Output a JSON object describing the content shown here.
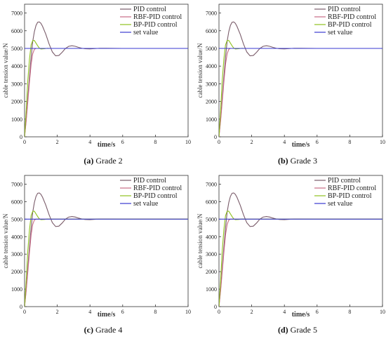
{
  "chart_data": [
    {
      "type": "line",
      "caption_letter": "(a)",
      "caption_text": " Grade 2",
      "xlabel": "time/s",
      "ylabel": "cable tension value/N",
      "xlim": [
        0,
        10
      ],
      "ylim": [
        0,
        7500
      ],
      "x_ticks": [
        0,
        2,
        4,
        6,
        8,
        10
      ],
      "y_ticks": [
        0,
        1000,
        2000,
        3000,
        4000,
        5000,
        6000,
        7000
      ],
      "legend_position": "top-right",
      "grid": false,
      "series": [
        {
          "name": "PID control",
          "color": "#7a5c6a",
          "x": [
            0,
            0.1,
            0.2,
            0.3,
            0.4,
            0.5,
            0.6,
            0.7,
            0.8,
            0.9,
            1.0,
            1.1,
            1.3,
            1.5,
            1.7,
            1.9,
            2.1,
            2.3,
            2.5,
            2.7,
            2.9,
            3.1,
            3.3,
            3.5,
            3.7,
            4.0,
            4.3,
            4.6,
            5.0,
            6.0,
            7.0,
            8.0,
            9.0,
            10.0
          ],
          "y": [
            0,
            1000,
            2200,
            3400,
            4500,
            5400,
            5950,
            6300,
            6480,
            6500,
            6420,
            6250,
            5800,
            5250,
            4800,
            4580,
            4600,
            4780,
            5000,
            5120,
            5150,
            5120,
            5060,
            5010,
            4980,
            4970,
            4990,
            5010,
            5010,
            5000,
            5000,
            5000,
            5000,
            5000
          ]
        },
        {
          "name": "RBF-PID control",
          "color": "#c86a85",
          "x": [
            0,
            0.1,
            0.2,
            0.3,
            0.4,
            0.5,
            0.6,
            0.7,
            0.8,
            1.0,
            1.5,
            2,
            3,
            4,
            5,
            6,
            7,
            8,
            9,
            10
          ],
          "y": [
            0,
            900,
            2000,
            3100,
            4100,
            4700,
            4950,
            5000,
            5000,
            5000,
            5000,
            5000,
            5000,
            5000,
            5000,
            5000,
            5000,
            5000,
            5000,
            5000
          ]
        },
        {
          "name": "BP-PID control",
          "color": "#8fc21e",
          "x": [
            0,
            0.1,
            0.2,
            0.3,
            0.4,
            0.5,
            0.6,
            0.7,
            0.8,
            0.9,
            1.0,
            1.2,
            1.4,
            1.6,
            2,
            3,
            4,
            5,
            6,
            7,
            8,
            9,
            10
          ],
          "y": [
            0,
            1500,
            3200,
            4400,
            5200,
            5450,
            5450,
            5300,
            5150,
            5020,
            4970,
            4980,
            5010,
            5000,
            5000,
            5000,
            5000,
            5000,
            5000,
            5000,
            5000,
            5000,
            5000
          ]
        },
        {
          "name": "set value",
          "color": "#3a3ad0",
          "x": [
            0,
            10
          ],
          "y": [
            5000,
            5000
          ]
        }
      ]
    },
    {
      "type": "line",
      "caption_letter": "(b)",
      "caption_text": " Grade 3",
      "xlabel": "time/s",
      "ylabel": "cable tension value/N",
      "xlim": [
        0,
        10
      ],
      "ylim": [
        0,
        7500
      ],
      "x_ticks": [
        0,
        2,
        4,
        6,
        8,
        10
      ],
      "y_ticks": [
        0,
        1000,
        2000,
        3000,
        4000,
        5000,
        6000,
        7000
      ],
      "legend_position": "top-right",
      "grid": false,
      "series": [
        {
          "name": "PID control",
          "color": "#7a5c6a",
          "x": [
            0,
            0.1,
            0.2,
            0.3,
            0.4,
            0.5,
            0.6,
            0.7,
            0.8,
            0.9,
            1.0,
            1.1,
            1.3,
            1.5,
            1.7,
            1.9,
            2.1,
            2.3,
            2.5,
            2.7,
            2.9,
            3.1,
            3.3,
            3.5,
            3.7,
            4.0,
            4.3,
            4.6,
            5.0,
            6.0,
            7.0,
            8.0,
            9.0,
            10.0
          ],
          "y": [
            0,
            1000,
            2200,
            3400,
            4500,
            5400,
            5950,
            6300,
            6480,
            6500,
            6420,
            6250,
            5800,
            5250,
            4800,
            4580,
            4600,
            4780,
            5000,
            5120,
            5150,
            5120,
            5060,
            5010,
            4980,
            4970,
            4990,
            5010,
            5010,
            5000,
            5000,
            5000,
            5000,
            5000
          ]
        },
        {
          "name": "RBF-PID control",
          "color": "#c86a85",
          "x": [
            0,
            0.1,
            0.2,
            0.3,
            0.4,
            0.5,
            0.6,
            0.7,
            0.8,
            1.0,
            1.5,
            2,
            3,
            4,
            5,
            6,
            7,
            8,
            9,
            10
          ],
          "y": [
            0,
            900,
            2000,
            3100,
            4100,
            4700,
            4950,
            5000,
            5000,
            5000,
            5000,
            5000,
            5000,
            5000,
            5000,
            5000,
            5000,
            5000,
            5000,
            5000
          ]
        },
        {
          "name": "BP-PID control",
          "color": "#8fc21e",
          "x": [
            0,
            0.1,
            0.2,
            0.3,
            0.4,
            0.5,
            0.6,
            0.7,
            0.8,
            0.9,
            1.0,
            1.2,
            1.4,
            1.6,
            2,
            3,
            4,
            5,
            6,
            7,
            8,
            9,
            10
          ],
          "y": [
            0,
            1500,
            3200,
            4400,
            5200,
            5450,
            5450,
            5300,
            5150,
            5020,
            4970,
            4980,
            5010,
            5000,
            5000,
            5000,
            5000,
            5000,
            5000,
            5000,
            5000,
            5000,
            5000
          ]
        },
        {
          "name": "set value",
          "color": "#3a3ad0",
          "x": [
            0,
            10
          ],
          "y": [
            5000,
            5000
          ]
        }
      ]
    },
    {
      "type": "line",
      "caption_letter": "(c)",
      "caption_text": " Grade 4",
      "xlabel": "time/s",
      "ylabel": "cable tension value/N",
      "xlim": [
        0,
        10
      ],
      "ylim": [
        0,
        7500
      ],
      "x_ticks": [
        0,
        2,
        4,
        6,
        8,
        10
      ],
      "y_ticks": [
        0,
        1000,
        2000,
        3000,
        4000,
        5000,
        6000,
        7000
      ],
      "legend_position": "top-right",
      "grid": false,
      "series": [
        {
          "name": "PID control",
          "color": "#7a5c6a",
          "x": [
            0,
            0.1,
            0.2,
            0.3,
            0.4,
            0.5,
            0.6,
            0.7,
            0.8,
            0.9,
            1.0,
            1.1,
            1.3,
            1.5,
            1.7,
            1.9,
            2.1,
            2.3,
            2.5,
            2.7,
            2.9,
            3.1,
            3.3,
            3.5,
            3.7,
            4.0,
            4.3,
            4.6,
            5.0,
            6.0,
            7.0,
            8.0,
            9.0,
            10.0
          ],
          "y": [
            0,
            1000,
            2200,
            3400,
            4500,
            5400,
            5950,
            6300,
            6480,
            6500,
            6420,
            6250,
            5800,
            5250,
            4800,
            4580,
            4600,
            4780,
            5000,
            5120,
            5150,
            5120,
            5060,
            5010,
            4980,
            4970,
            4990,
            5010,
            5010,
            5000,
            5000,
            5000,
            5000,
            5000
          ]
        },
        {
          "name": "RBF-PID control",
          "color": "#c86a85",
          "x": [
            0,
            0.1,
            0.2,
            0.3,
            0.4,
            0.5,
            0.6,
            0.7,
            0.8,
            1.0,
            1.5,
            2,
            3,
            4,
            5,
            6,
            7,
            8,
            9,
            10
          ],
          "y": [
            0,
            900,
            2000,
            3100,
            4100,
            4700,
            4950,
            5000,
            5000,
            5000,
            5000,
            5000,
            5000,
            5000,
            5000,
            5000,
            5000,
            5000,
            5000,
            5000
          ]
        },
        {
          "name": "BP-PID control",
          "color": "#8fc21e",
          "x": [
            0,
            0.1,
            0.2,
            0.3,
            0.4,
            0.5,
            0.6,
            0.7,
            0.8,
            0.9,
            1.0,
            1.2,
            1.4,
            1.6,
            2,
            3,
            4,
            5,
            6,
            7,
            8,
            9,
            10
          ],
          "y": [
            0,
            1500,
            3200,
            4400,
            5200,
            5450,
            5450,
            5300,
            5150,
            5020,
            4970,
            4980,
            5010,
            5000,
            5000,
            5000,
            5000,
            5000,
            5000,
            5000,
            5000,
            5000,
            5000
          ]
        },
        {
          "name": "set value",
          "color": "#3a3ad0",
          "x": [
            0,
            10
          ],
          "y": [
            5000,
            5000
          ]
        }
      ]
    },
    {
      "type": "line",
      "caption_letter": "(d)",
      "caption_text": " Grade 5",
      "xlabel": "time/s",
      "ylabel": "cable tension value/N",
      "xlim": [
        0,
        10
      ],
      "ylim": [
        0,
        7500
      ],
      "x_ticks": [
        0,
        2,
        4,
        6,
        8,
        10
      ],
      "y_ticks": [
        0,
        1000,
        2000,
        3000,
        4000,
        5000,
        6000,
        7000
      ],
      "legend_position": "top-right",
      "grid": false,
      "series": [
        {
          "name": "PID control",
          "color": "#7a5c6a",
          "x": [
            0,
            0.1,
            0.2,
            0.3,
            0.4,
            0.5,
            0.6,
            0.7,
            0.8,
            0.9,
            1.0,
            1.1,
            1.3,
            1.5,
            1.7,
            1.9,
            2.1,
            2.3,
            2.5,
            2.7,
            2.9,
            3.1,
            3.3,
            3.5,
            3.7,
            4.0,
            4.3,
            4.6,
            5.0,
            6.0,
            7.0,
            8.0,
            9.0,
            10.0
          ],
          "y": [
            0,
            1000,
            2200,
            3400,
            4500,
            5400,
            5950,
            6300,
            6480,
            6500,
            6420,
            6250,
            5800,
            5250,
            4800,
            4580,
            4600,
            4780,
            5000,
            5120,
            5150,
            5120,
            5060,
            5010,
            4980,
            4970,
            4990,
            5010,
            5010,
            5000,
            5000,
            5000,
            5000,
            5000
          ]
        },
        {
          "name": "RBF-PID control",
          "color": "#c86a85",
          "x": [
            0,
            0.1,
            0.2,
            0.3,
            0.4,
            0.5,
            0.6,
            0.7,
            0.8,
            1.0,
            1.5,
            2,
            3,
            4,
            5,
            6,
            7,
            8,
            9,
            10
          ],
          "y": [
            0,
            900,
            2000,
            3100,
            4100,
            4700,
            4950,
            5000,
            5000,
            5000,
            5000,
            5000,
            5000,
            5000,
            5000,
            5000,
            5000,
            5000,
            5000,
            5000
          ]
        },
        {
          "name": "BP-PID control",
          "color": "#8fc21e",
          "x": [
            0,
            0.1,
            0.2,
            0.3,
            0.4,
            0.5,
            0.6,
            0.7,
            0.8,
            0.9,
            1.0,
            1.2,
            1.4,
            1.6,
            2,
            3,
            4,
            5,
            6,
            7,
            8,
            9,
            10
          ],
          "y": [
            0,
            1500,
            3200,
            4400,
            5200,
            5450,
            5450,
            5300,
            5150,
            5020,
            4970,
            4980,
            5010,
            5000,
            5000,
            5000,
            5000,
            5000,
            5000,
            5000,
            5000,
            5000,
            5000
          ]
        },
        {
          "name": "set value",
          "color": "#3a3ad0",
          "x": [
            0,
            10
          ],
          "y": [
            5000,
            5000
          ]
        }
      ]
    }
  ]
}
